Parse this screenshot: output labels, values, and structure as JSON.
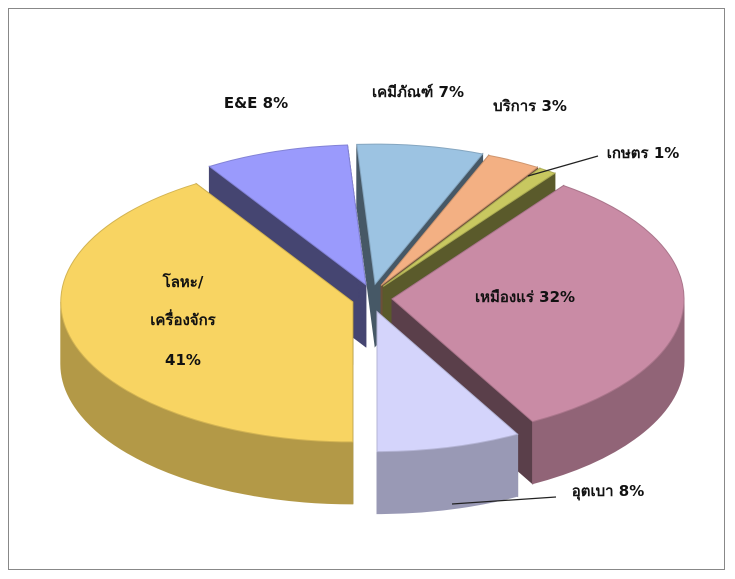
{
  "chart_data": {
    "type": "pie",
    "categories": [
      "โลหะ/ เครื่องจักร",
      "E&E",
      "เคมีภัณฑ์",
      "บริการ",
      "เกษตร",
      "เหมืองแร่",
      "อุตเบา"
    ],
    "values": [
      41,
      8,
      7,
      3,
      1,
      32,
      8
    ],
    "value_labels": [
      "41%",
      "8%",
      "7%",
      "3%",
      "1%",
      "32%",
      "8%"
    ],
    "colors": [
      "#f8d462",
      "#9a9afc",
      "#9cc3e2",
      "#f3b083",
      "#c8c860",
      "#c98ba5",
      "#d4d4fb"
    ]
  }
}
